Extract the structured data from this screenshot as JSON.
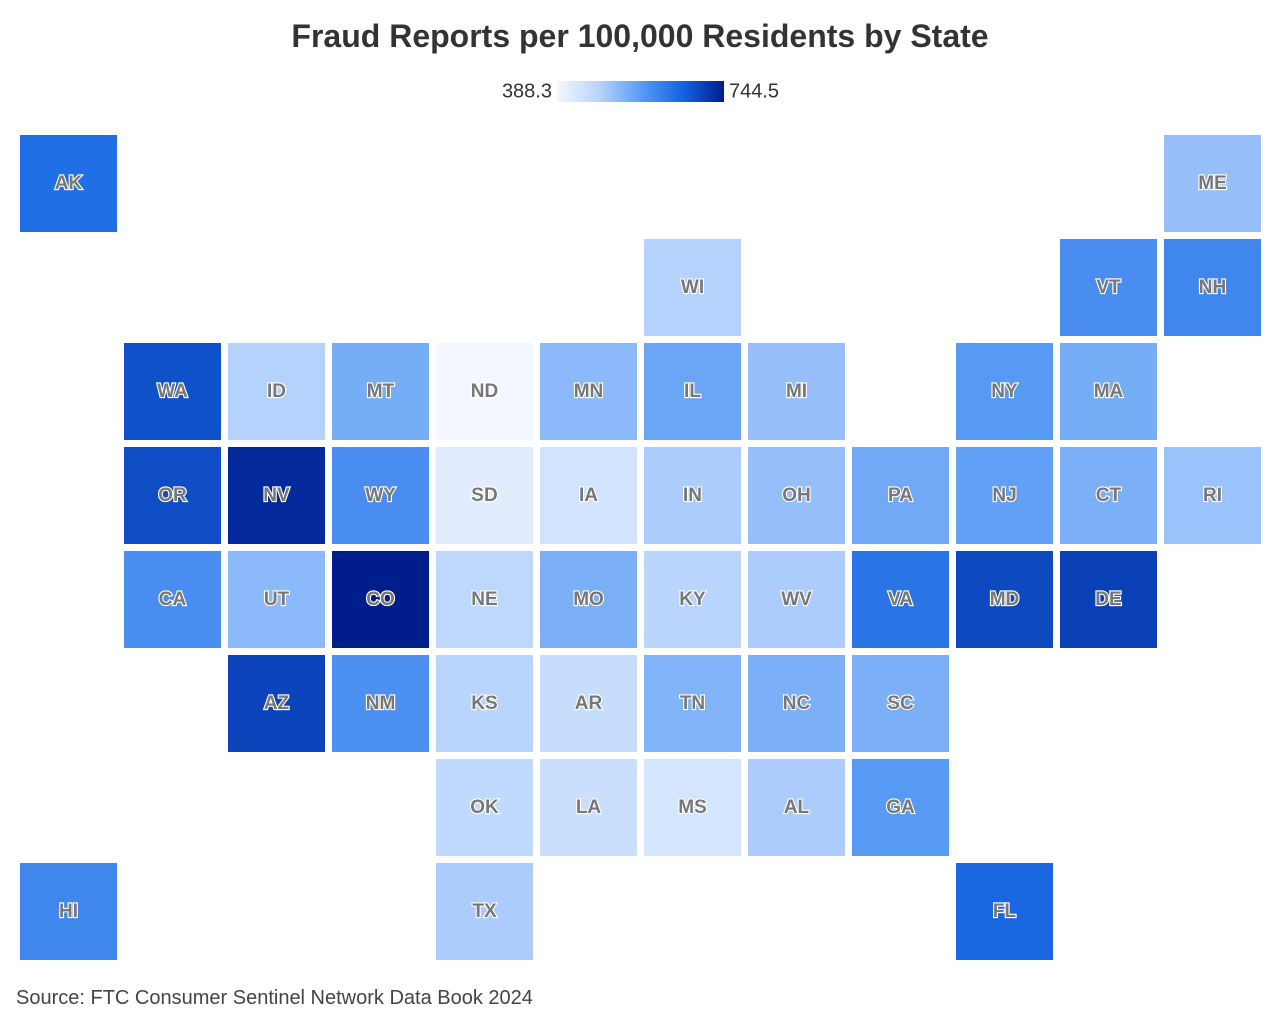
{
  "chart_data": {
    "type": "tilemap",
    "title": "Fraud Reports per 100,000 Residents by State",
    "source": "Source: FTC Consumer Sentinel Network Data Book 2024",
    "clim": [
      388.3,
      744.5
    ],
    "colorscale": [
      "#f3f7ff",
      "#b8d4fd",
      "#5a9cf5",
      "#1565e0",
      "#001d8c"
    ],
    "categories": [
      "AK",
      "ME",
      "WI",
      "VT",
      "NH",
      "WA",
      "ID",
      "MT",
      "ND",
      "MN",
      "IL",
      "MI",
      "NY",
      "MA",
      "OR",
      "NV",
      "WY",
      "SD",
      "IA",
      "IN",
      "OH",
      "PA",
      "NJ",
      "CT",
      "RI",
      "CA",
      "UT",
      "CO",
      "NE",
      "MO",
      "KY",
      "WV",
      "VA",
      "MD",
      "DE",
      "AZ",
      "NM",
      "KS",
      "AR",
      "TN",
      "NC",
      "SC",
      "OK",
      "LA",
      "MS",
      "AL",
      "GA",
      "HI",
      "TX",
      "FL"
    ],
    "values": [
      640,
      510,
      480,
      590,
      600,
      680,
      480,
      540,
      388.3,
      520,
      550,
      510,
      570,
      540,
      685,
      730,
      590,
      415,
      440,
      490,
      510,
      545,
      560,
      535,
      505,
      590,
      520,
      744.5,
      470,
      535,
      475,
      490,
      630,
      690,
      700,
      695,
      585,
      475,
      455,
      530,
      535,
      535,
      465,
      450,
      435,
      490,
      570,
      600,
      490,
      650
    ]
  }
}
